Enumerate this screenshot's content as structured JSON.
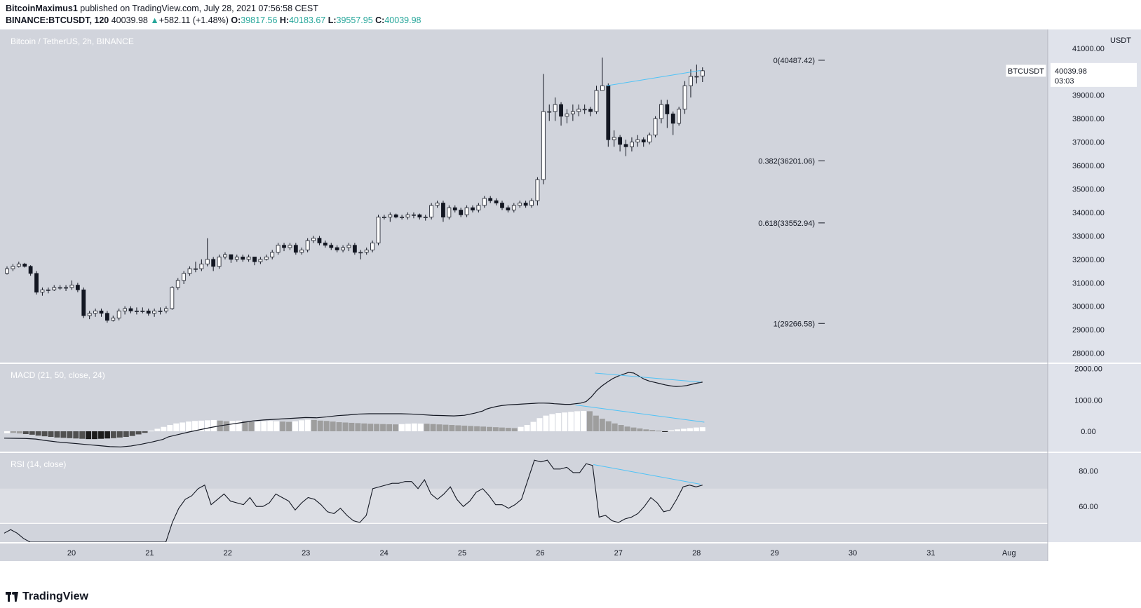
{
  "header": {
    "author": "BitcoinMaximus1",
    "published_text": "published on TradingView.com, July 28, 2021 07:56:58 CEST",
    "symbol_line": "BINANCE:BTCUSDT, 120",
    "last": "40039.98",
    "change": "+582.11 (+1.48%)",
    "o_label": "O:",
    "o": "39817.56",
    "h_label": "H:",
    "h": "40183.67",
    "l_label": "L:",
    "l": "39557.95",
    "c_label": "C:",
    "c": "40039.98"
  },
  "footer": {
    "brand": "TradingView"
  },
  "colors": {
    "background": "#d1d4dc",
    "rsi_band": "#dcdee4",
    "axis_bg": "#e0e3eb",
    "up_candle": "#ffffff",
    "down_candle": "#131722",
    "trendline": "#4fc3f7",
    "hist_light": "#ffffff",
    "hist_gray": "#9e9e9e",
    "hist_dark": "#505050",
    "hist_black": "#1c1c1c"
  },
  "chart_data": [
    {
      "type": "candlestick",
      "title": "Bitcoin / TetherUS, 2h, BINANCE",
      "ylabel": "USDT",
      "ylim": [
        27600,
        41800
      ],
      "y_ticks": [
        "41000.00",
        "40000.00",
        "39000.00",
        "38000.00",
        "37000.00",
        "36000.00",
        "35000.00",
        "34000.00",
        "33000.00",
        "32000.00",
        "31000.00",
        "30000.00",
        "29000.00",
        "28000.00"
      ],
      "y_tick_values": [
        41000,
        40000,
        39000,
        38000,
        37000,
        36000,
        35000,
        34000,
        33000,
        32000,
        31000,
        30000,
        29000,
        28000
      ],
      "x_labels": [
        "20",
        "21",
        "22",
        "23",
        "24",
        "25",
        "26",
        "27",
        "28",
        "29",
        "30",
        "31",
        "Aug"
      ],
      "x_label_days": [
        1,
        2,
        3,
        4,
        5,
        6,
        7,
        8,
        9,
        10,
        11,
        12,
        13
      ],
      "last_price_label": "BTCUSDT",
      "last_price": "40039.98",
      "countdown": "03:03",
      "fib_levels": [
        {
          "label": "0(40487.42)",
          "value": 40487.42
        },
        {
          "label": "0.382(36201.06)",
          "value": 36201.06
        },
        {
          "label": "0.618(33552.94)",
          "value": 33552.94
        },
        {
          "label": "1(29266.58)",
          "value": 29266.58
        }
      ],
      "trendline": [
        {
          "day": 7.85,
          "value": 39400
        },
        {
          "day": 9.05,
          "value": 40050
        }
      ],
      "candles_closes": [
        31600,
        31700,
        31800,
        31700,
        31400,
        30600,
        30700,
        30700,
        30800,
        30800,
        30800,
        30900,
        30700,
        29600,
        29700,
        29800,
        29700,
        29400,
        29500,
        29800,
        29900,
        29800,
        29800,
        29800,
        29700,
        29800,
        29800,
        29900,
        30800,
        31100,
        31400,
        31600,
        31600,
        31800,
        32000,
        31700,
        32100,
        32200,
        32000,
        32100,
        32000,
        32100,
        31900,
        32000,
        32100,
        32300,
        32600,
        32500,
        32600,
        32300,
        32400,
        32800,
        32900,
        32700,
        32600,
        32500,
        32400,
        32500,
        32600,
        32300,
        32300,
        32400,
        32700,
        33800,
        33800,
        33900,
        33800,
        33800,
        33900,
        33900,
        33800,
        33800,
        34300,
        34400,
        33800,
        34200,
        34100,
        33900,
        34200,
        34100,
        34300,
        34600,
        34500,
        34400,
        34200,
        34100,
        34300,
        34400,
        34300,
        34500,
        35400,
        38300,
        38300,
        38600,
        38100,
        38200,
        38300,
        38400,
        38400,
        38300,
        39200,
        39400,
        37100,
        37200,
        36900,
        36800,
        37000,
        37100,
        37000,
        37300,
        38000,
        38600,
        38200,
        37800,
        38400,
        39400,
        39800,
        39800,
        40040
      ],
      "candles_opens": [
        31400,
        31600,
        31700,
        31800,
        31700,
        31400,
        30600,
        30700,
        30700,
        30800,
        30800,
        30800,
        30900,
        30700,
        29600,
        29700,
        29800,
        29700,
        29400,
        29500,
        29800,
        29900,
        29800,
        29800,
        29800,
        29700,
        29800,
        29800,
        29900,
        30800,
        31100,
        31400,
        31600,
        31600,
        31800,
        32000,
        31700,
        32100,
        32200,
        32000,
        32100,
        32000,
        32100,
        31900,
        32000,
        32100,
        32300,
        32600,
        32500,
        32600,
        32300,
        32400,
        32800,
        32900,
        32700,
        32600,
        32500,
        32400,
        32500,
        32600,
        32300,
        32300,
        32400,
        32700,
        33800,
        33800,
        33900,
        33800,
        33800,
        33900,
        33900,
        33800,
        33800,
        34300,
        34400,
        33800,
        34200,
        34100,
        33900,
        34200,
        34100,
        34300,
        34600,
        34500,
        34400,
        34200,
        34100,
        34300,
        34400,
        34300,
        34500,
        35400,
        38300,
        38300,
        38600,
        38100,
        38200,
        38300,
        38400,
        38400,
        38300,
        39200,
        39400,
        37100,
        37200,
        36900,
        36800,
        37000,
        37100,
        37000,
        37300,
        38000,
        38600,
        38200,
        37800,
        38400,
        39400,
        39800,
        39817.56
      ],
      "candles_highs": [
        31700,
        31800,
        31900,
        31850,
        31750,
        31500,
        30800,
        30800,
        30900,
        30900,
        30900,
        31100,
        31000,
        30800,
        29800,
        29900,
        29900,
        29800,
        29600,
        29900,
        30000,
        30000,
        29950,
        29950,
        29900,
        29900,
        29950,
        30000,
        30850,
        31200,
        31500,
        31700,
        31900,
        32000,
        32900,
        32100,
        32200,
        32300,
        32200,
        32200,
        32200,
        32200,
        32100,
        32100,
        32200,
        32400,
        32700,
        32700,
        32700,
        32700,
        32500,
        32900,
        33000,
        33000,
        32800,
        32700,
        32600,
        32600,
        32700,
        32700,
        32400,
        32500,
        32800,
        33900,
        33900,
        34000,
        33950,
        33900,
        34000,
        34000,
        33950,
        33900,
        34400,
        34500,
        34500,
        34300,
        34300,
        34200,
        34300,
        34300,
        34400,
        34700,
        34700,
        34600,
        34500,
        34300,
        34400,
        34500,
        34500,
        34600,
        35500,
        39900,
        38600,
        38900,
        38700,
        38400,
        38600,
        38600,
        38600,
        38500,
        39400,
        40600,
        39500,
        37500,
        37300,
        37100,
        37200,
        37300,
        37200,
        37400,
        38100,
        38800,
        38800,
        38300,
        38500,
        39600,
        40100,
        40300,
        40183.67
      ],
      "candles_lows": [
        31350,
        31500,
        31650,
        31650,
        31300,
        30500,
        30450,
        30550,
        30650,
        30700,
        30650,
        30700,
        30600,
        29500,
        29450,
        29550,
        29550,
        29300,
        29350,
        29400,
        29650,
        29700,
        29650,
        29700,
        29600,
        29550,
        29650,
        29700,
        29850,
        30700,
        30950,
        31300,
        31450,
        31500,
        31700,
        31500,
        31600,
        32000,
        31850,
        31900,
        31900,
        31900,
        31750,
        31800,
        31950,
        32000,
        32200,
        32350,
        32400,
        32200,
        32200,
        32300,
        32700,
        32600,
        32500,
        32400,
        32300,
        32300,
        32350,
        32200,
        32000,
        32200,
        32300,
        32600,
        33700,
        33600,
        33750,
        33700,
        33700,
        33750,
        33700,
        33650,
        33700,
        34200,
        33600,
        33700,
        34000,
        33800,
        33800,
        34000,
        34000,
        34200,
        34400,
        34300,
        34100,
        34000,
        34000,
        34200,
        34200,
        34200,
        34300,
        35200,
        37900,
        37900,
        37700,
        37800,
        37900,
        38100,
        38200,
        38100,
        38200,
        39200,
        36800,
        36800,
        36600,
        36400,
        36600,
        36800,
        36800,
        36900,
        37200,
        37800,
        37600,
        37300,
        37700,
        38200,
        38900,
        39500,
        39557.95
      ]
    },
    {
      "type": "line+histogram",
      "title": "MACD (21, 50, close, 24)",
      "ylim": [
        -650,
        2150
      ],
      "y_ticks": [
        "2000.00",
        "1000.00",
        "0.00"
      ],
      "y_tick_values": [
        2000,
        1000,
        0
      ],
      "macd_line": [
        -220,
        -225,
        -230,
        -250,
        -300,
        -340,
        -370,
        -400,
        -430,
        -460,
        -490,
        -500,
        -470,
        -410,
        -340,
        -260,
        -180,
        -100,
        -20,
        50,
        120,
        180,
        230,
        280,
        330,
        360,
        380,
        400,
        420,
        440,
        430,
        460,
        500,
        520,
        550,
        560,
        560,
        560,
        560,
        550,
        530,
        510,
        500,
        490,
        510,
        580,
        650,
        700,
        750,
        790,
        820,
        840,
        850,
        860,
        870,
        880,
        890,
        900,
        900,
        895,
        880,
        870,
        860,
        860,
        880,
        900,
        950,
        1100,
        1300,
        1450,
        1570,
        1680,
        1760,
        1820,
        1880,
        1860,
        1760,
        1660,
        1600,
        1560,
        1520,
        1480,
        1450,
        1430,
        1440,
        1460,
        1500,
        1540,
        1570
      ],
      "macd_days": [
        0,
        0.2,
        0.4,
        0.6,
        0.8,
        1,
        1.2,
        1.4,
        1.6,
        1.8,
        2,
        2.2,
        2.4,
        2.6,
        2.8,
        3,
        3.1,
        3.3,
        3.5,
        3.7,
        3.9,
        4.1,
        4.3,
        4.5,
        4.7,
        4.9,
        5.1,
        5.3,
        5.5,
        5.7,
        5.9,
        6.1,
        6.3,
        6.5,
        6.7,
        6.9,
        7.1,
        7.3,
        7.5,
        7.7,
        7.9,
        8.1,
        8.3,
        8.5,
        8.7,
        8.9,
        9.05,
        9.1,
        9.2,
        9.3,
        9.4,
        9.5,
        9.6,
        9.7,
        9.8,
        9.9,
        10.0,
        10.1,
        10.2,
        10.3,
        10.4,
        10.5,
        10.6,
        10.7,
        10.8,
        10.9,
        11.0,
        11.1,
        11.2,
        11.3,
        11.4,
        11.5,
        11.6,
        11.7,
        11.8,
        11.9,
        12.0,
        12.1,
        12.2,
        12.3,
        12.4,
        12.5,
        12.6,
        12.7,
        12.8,
        12.9,
        13.0,
        13.1,
        13.2
      ],
      "hist_values": [
        -60,
        -50,
        -70,
        -90,
        -110,
        -140,
        -160,
        -180,
        -200,
        -210,
        -220,
        -230,
        -240,
        -250,
        -250,
        -240,
        -230,
        -220,
        -200,
        -180,
        -150,
        -100,
        -50,
        20,
        80,
        140,
        200,
        250,
        280,
        310,
        330,
        340,
        350,
        360,
        340,
        320,
        330,
        340,
        320,
        300,
        310,
        320,
        330,
        320,
        310,
        300,
        320,
        350,
        370,
        360,
        340,
        330,
        310,
        290,
        280,
        270,
        260,
        250,
        240,
        235,
        230,
        225,
        220,
        230,
        240,
        250,
        245,
        240,
        230,
        220,
        210,
        200,
        190,
        180,
        170,
        160,
        150,
        140,
        130,
        120,
        110,
        100,
        140,
        200,
        300,
        420,
        500,
        550,
        580,
        600,
        620,
        640,
        650,
        640,
        500,
        400,
        320,
        250,
        200,
        150,
        120,
        90,
        60,
        40,
        20,
        -20,
        30,
        60,
        80,
        100,
        120,
        130
      ],
      "hist_colors": [
        "w",
        "g",
        "g",
        "d",
        "d",
        "d",
        "d",
        "d",
        "d",
        "d",
        "d",
        "d",
        "d",
        "b",
        "b",
        "b",
        "b",
        "d",
        "d",
        "d",
        "d",
        "d",
        "d",
        "w",
        "w",
        "w",
        "w",
        "w",
        "w",
        "w",
        "w",
        "w",
        "w",
        "w",
        "g",
        "g",
        "w",
        "w",
        "g",
        "g",
        "w",
        "w",
        "w",
        "w",
        "g",
        "g",
        "w",
        "w",
        "w",
        "g",
        "g",
        "g",
        "g",
        "g",
        "g",
        "g",
        "g",
        "g",
        "g",
        "g",
        "g",
        "g",
        "g",
        "w",
        "w",
        "w",
        "w",
        "g",
        "g",
        "g",
        "g",
        "g",
        "g",
        "g",
        "g",
        "g",
        "g",
        "g",
        "g",
        "g",
        "g",
        "g",
        "w",
        "w",
        "w",
        "w",
        "w",
        "w",
        "w",
        "w",
        "w",
        "w",
        "w",
        "g",
        "g",
        "g",
        "g",
        "g",
        "g",
        "g",
        "g",
        "g",
        "g",
        "g",
        "g",
        "b",
        "w",
        "w",
        "w",
        "w",
        "w",
        "w"
      ],
      "trendlines": [
        [
          {
            "day": 7.7,
            "value": 1860
          },
          {
            "day": 9.05,
            "value": 1570
          }
        ],
        [
          {
            "day": 7.45,
            "value": 840
          },
          {
            "day": 9.1,
            "value": 290
          }
        ]
      ]
    },
    {
      "type": "line",
      "title": "RSI (14, close)",
      "ylim": [
        40,
        90
      ],
      "y_ticks": [
        "80.00",
        "60.00"
      ],
      "y_tick_values": [
        80,
        60
      ],
      "band": [
        50.5,
        70
      ],
      "rsi_values": [
        45,
        47,
        45,
        42,
        38,
        35,
        34,
        33,
        34,
        36,
        38,
        40,
        36,
        34,
        32,
        33,
        35,
        37,
        36,
        38,
        39,
        40,
        38,
        37,
        36,
        35,
        51,
        59,
        64,
        66,
        70,
        72,
        61,
        64,
        67,
        63,
        62,
        61,
        65,
        60,
        60,
        62,
        67,
        65,
        63,
        58,
        62,
        65,
        64,
        61,
        57,
        56,
        59,
        55,
        52,
        51,
        55,
        70,
        71,
        72,
        73,
        73,
        74,
        74,
        70,
        75,
        67,
        64,
        67,
        71,
        64,
        60,
        63,
        68,
        70,
        66,
        61,
        61,
        59,
        61,
        64,
        75,
        86,
        85,
        86,
        81,
        81,
        82,
        79,
        79,
        84,
        83,
        54,
        55,
        52,
        51,
        53,
        54,
        56,
        60,
        65,
        62,
        57,
        58,
        64,
        71,
        72,
        71,
        72
      ],
      "trendline": [
        {
          "day": 7.68,
          "value": 83.5
        },
        {
          "day": 9.05,
          "value": 72.5
        }
      ]
    }
  ]
}
